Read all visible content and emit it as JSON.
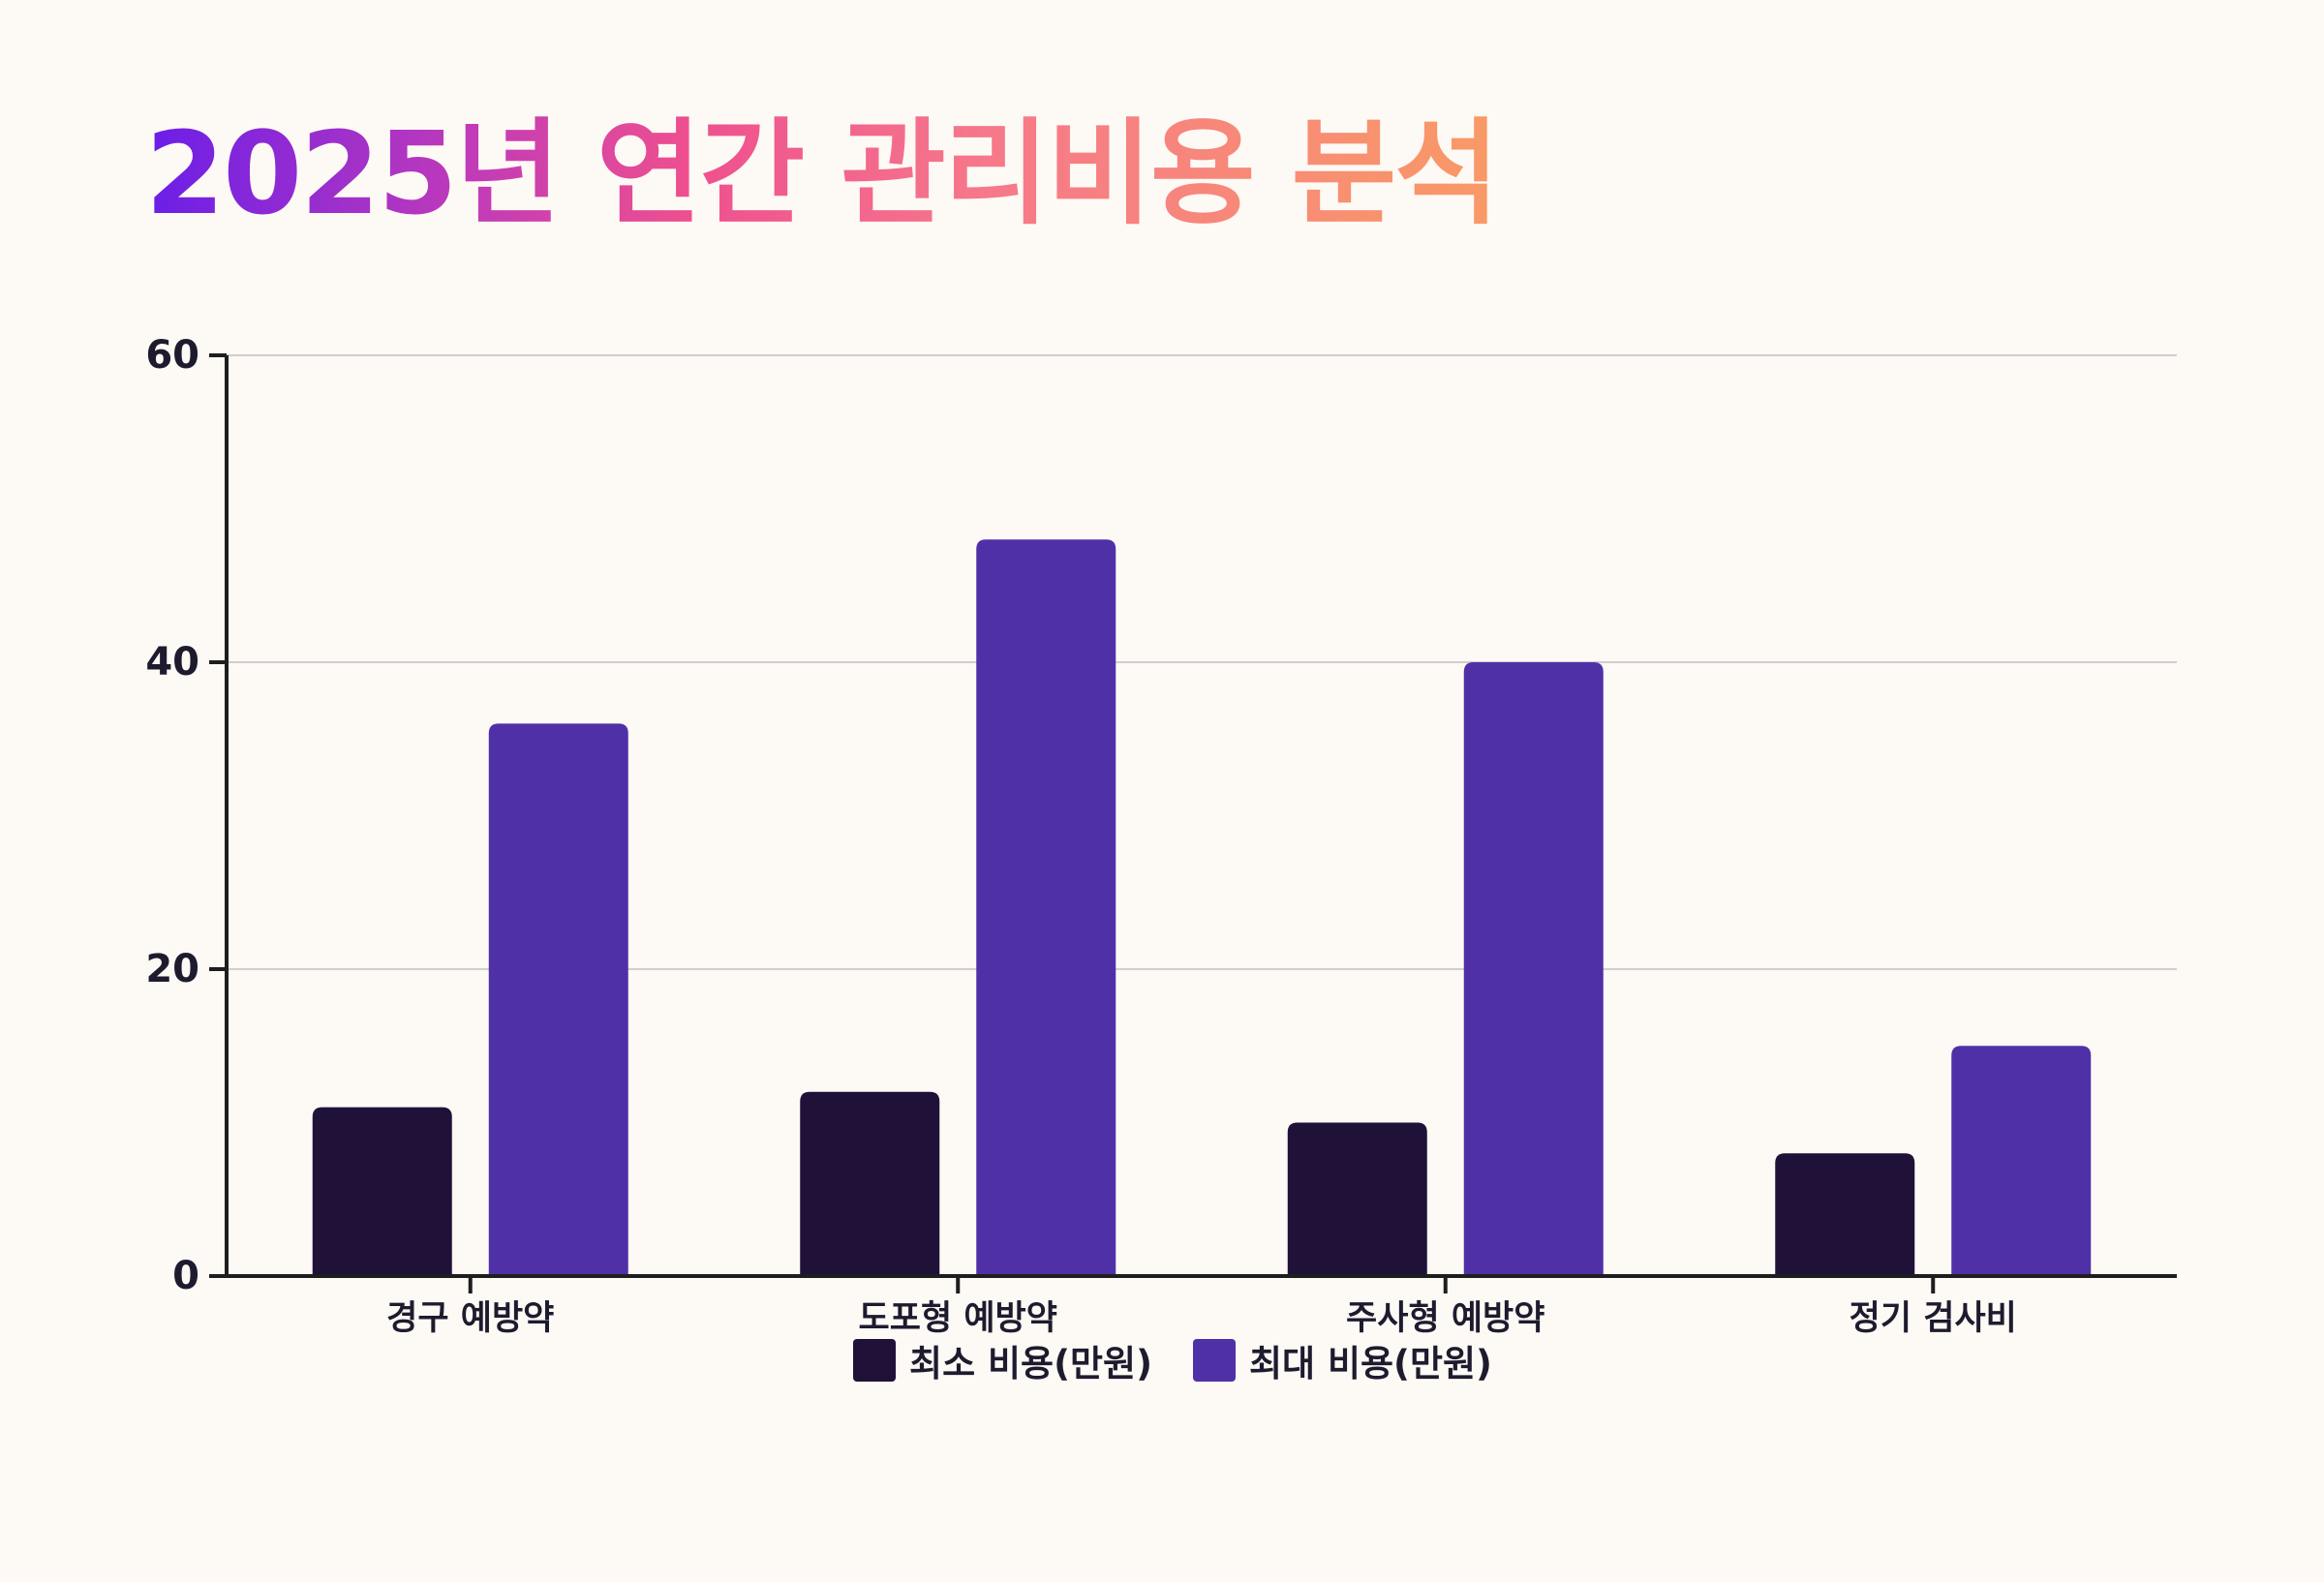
{
  "title": "2025년 연간 관리비용 분석",
  "colors": {
    "background": "#fdf9f5",
    "series_min": "#1f1138",
    "series_max": "#5030a6",
    "axis": "#1e1e1e",
    "grid": "#cfcfcf",
    "text": "#1e1b2e"
  },
  "chart_data": {
    "type": "bar",
    "title": "2025년 연간 관리비용 분석",
    "xlabel": "",
    "ylabel": "",
    "ylim": [
      0,
      60
    ],
    "yticks": [
      0,
      20,
      40,
      60
    ],
    "grid": true,
    "legend_position": "bottom-center",
    "categories": [
      "경구 예방약",
      "도포형 예방약",
      "주사형 예방약",
      "정기 검사비"
    ],
    "series": [
      {
        "name": "최소 비용(만원)",
        "color": "#1f1138",
        "values": [
          11,
          12,
          10,
          8
        ]
      },
      {
        "name": "최대 비용(만원)",
        "color": "#5030a6",
        "values": [
          36,
          48,
          40,
          15
        ]
      }
    ]
  }
}
